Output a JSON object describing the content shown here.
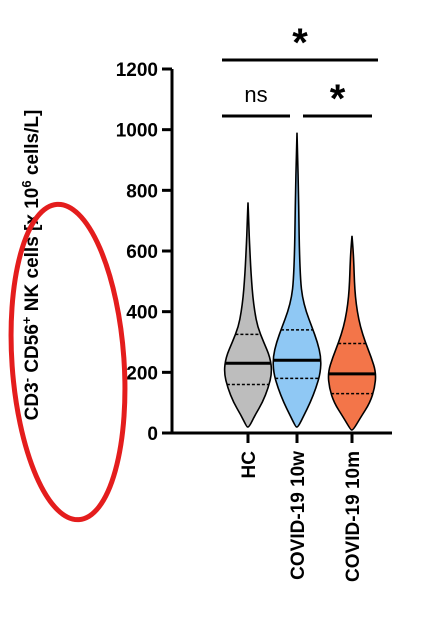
{
  "chart_data": {
    "type": "violin",
    "title": "",
    "ylabel_parts": {
      "pre": "CD3",
      "sup1": "-",
      "mid": " CD56",
      "sup2": "+",
      "mid2": " NK cells [x 10",
      "sup3": "6",
      "post": " cells/L]"
    },
    "ylim": [
      0,
      1200
    ],
    "yticks": [
      0,
      200,
      400,
      600,
      800,
      1000,
      1200
    ],
    "categories": [
      "HC",
      "COVID-19 10w",
      "COVID-19 10m"
    ],
    "series": [
      {
        "category": "HC",
        "color": "#bdbdbd",
        "median": 230,
        "q1": 160,
        "q3": 325,
        "min": 20,
        "max": 760,
        "profile": [
          [
            20,
            0.05
          ],
          [
            60,
            0.3
          ],
          [
            100,
            0.6
          ],
          [
            150,
            0.85
          ],
          [
            200,
            1.0
          ],
          [
            250,
            0.92
          ],
          [
            300,
            0.65
          ],
          [
            350,
            0.4
          ],
          [
            400,
            0.28
          ],
          [
            450,
            0.2
          ],
          [
            500,
            0.15
          ],
          [
            550,
            0.11
          ],
          [
            600,
            0.08
          ],
          [
            650,
            0.05
          ],
          [
            700,
            0.03
          ],
          [
            760,
            0.0
          ]
        ]
      },
      {
        "category": "COVID-19 10w",
        "color": "#8fc8f4",
        "median": 240,
        "q1": 180,
        "q3": 340,
        "min": 20,
        "max": 990,
        "profile": [
          [
            20,
            0.05
          ],
          [
            60,
            0.3
          ],
          [
            100,
            0.55
          ],
          [
            150,
            0.8
          ],
          [
            200,
            0.98
          ],
          [
            250,
            1.0
          ],
          [
            300,
            0.85
          ],
          [
            350,
            0.62
          ],
          [
            400,
            0.38
          ],
          [
            450,
            0.22
          ],
          [
            500,
            0.15
          ],
          [
            600,
            0.1
          ],
          [
            700,
            0.08
          ],
          [
            800,
            0.06
          ],
          [
            900,
            0.03
          ],
          [
            990,
            0.0
          ]
        ]
      },
      {
        "category": "COVID-19 10m",
        "color": "#f37549",
        "median": 195,
        "q1": 130,
        "q3": 295,
        "min": 10,
        "max": 650,
        "profile": [
          [
            10,
            0.05
          ],
          [
            50,
            0.35
          ],
          [
            100,
            0.75
          ],
          [
            150,
            0.95
          ],
          [
            200,
            1.0
          ],
          [
            250,
            0.8
          ],
          [
            300,
            0.55
          ],
          [
            350,
            0.35
          ],
          [
            400,
            0.22
          ],
          [
            450,
            0.14
          ],
          [
            500,
            0.1
          ],
          [
            550,
            0.08
          ],
          [
            600,
            0.05
          ],
          [
            650,
            0.0
          ]
        ]
      }
    ],
    "significance": [
      {
        "from": 0,
        "to": 1,
        "label": "ns",
        "y": 1040
      },
      {
        "from": 1,
        "to": 2,
        "label": "*",
        "y": 1040
      },
      {
        "from": 0,
        "to": 2,
        "label": "*",
        "y": 1225
      }
    ]
  },
  "annotation": {
    "shape": "ellipse",
    "color": "#e41d1d"
  }
}
